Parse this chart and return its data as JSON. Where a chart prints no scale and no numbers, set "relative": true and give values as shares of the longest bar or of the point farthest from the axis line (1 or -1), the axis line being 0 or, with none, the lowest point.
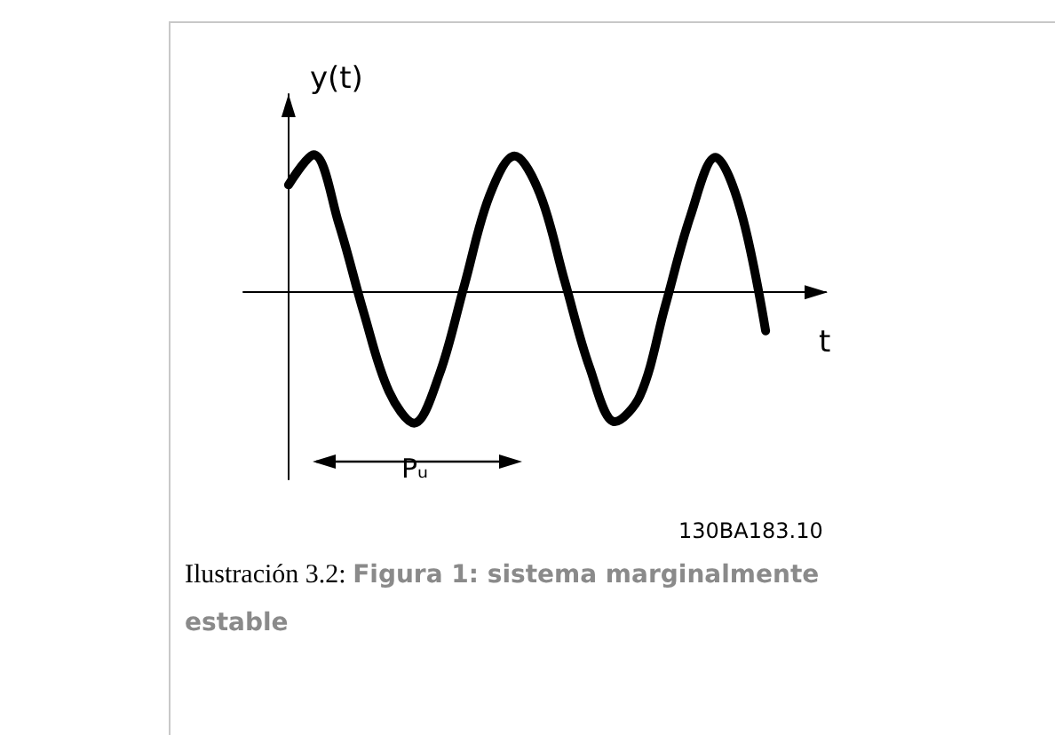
{
  "chart_data": {
    "type": "line",
    "xlabel": "t",
    "ylabel": "y(t)",
    "categories": [
      null,
      null,
      null,
      null,
      null,
      null,
      null,
      null,
      null,
      null,
      null,
      null,
      null,
      null,
      null,
      null,
      null,
      null,
      null,
      null
    ],
    "values": [
      0.78,
      1.0,
      0.5,
      -0.15,
      -0.72,
      -0.95,
      -0.6,
      0.05,
      0.7,
      0.99,
      0.72,
      0.08,
      -0.55,
      -0.94,
      -0.75,
      -0.1,
      0.55,
      0.98,
      0.6,
      -0.28
    ],
    "color": "#000000",
    "relative": true,
    "marker": "none",
    "line_style": "solid",
    "annotations": [
      "Pᵤ",
      "130BA183.10",
      "Ilustración 3.2:",
      "Figura 1: sistema marginalmente estable"
    ]
  }
}
